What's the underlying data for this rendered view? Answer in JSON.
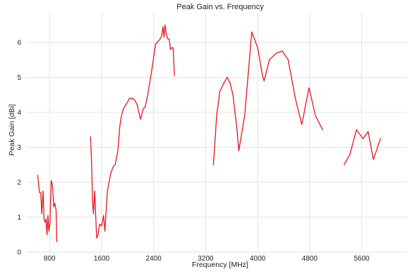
{
  "chart_data": {
    "type": "line",
    "title": "Peak Gain vs. Frequency",
    "xlabel": "Frequency [MHz]",
    "ylabel": "Peak Gain [dBi]",
    "xlim": [
      450,
      6300
    ],
    "ylim": [
      0,
      6.85
    ],
    "xticks": [
      800,
      1600,
      2400,
      3200,
      4000,
      4800,
      5600
    ],
    "yticks": [
      0,
      1,
      2,
      3,
      4,
      5,
      6
    ],
    "grid": true,
    "legend": "none",
    "color": "#e8141c",
    "series": [
      {
        "points": [
          [
            617,
            2.2
          ],
          [
            645,
            1.7
          ],
          [
            665,
            1.7
          ],
          [
            680,
            1.1
          ],
          [
            700,
            1.75
          ],
          [
            715,
            0.95
          ],
          [
            730,
            0.85
          ],
          [
            745,
            0.95
          ],
          [
            760,
            0.5
          ],
          [
            775,
            1.05
          ],
          [
            790,
            0.6
          ],
          [
            805,
            0.8
          ],
          [
            825,
            2.05
          ],
          [
            845,
            1.9
          ],
          [
            865,
            1.3
          ],
          [
            880,
            1.4
          ],
          [
            900,
            1.2
          ],
          [
            912,
            0.3
          ]
        ]
      },
      {
        "points": [
          [
            1430,
            3.3
          ],
          [
            1445,
            2.6
          ],
          [
            1460,
            1.5
          ],
          [
            1475,
            1.1
          ],
          [
            1495,
            1.75
          ],
          [
            1510,
            1.0
          ],
          [
            1525,
            0.4
          ],
          [
            1545,
            0.5
          ],
          [
            1570,
            0.8
          ],
          [
            1600,
            0.75
          ],
          [
            1630,
            1.05
          ],
          [
            1650,
            0.6
          ],
          [
            1690,
            1.75
          ],
          [
            1740,
            2.25
          ],
          [
            1780,
            2.45
          ],
          [
            1810,
            2.5
          ],
          [
            1850,
            2.9
          ],
          [
            1880,
            3.6
          ],
          [
            1905,
            3.9
          ],
          [
            1935,
            4.1
          ],
          [
            1970,
            4.2
          ],
          [
            2000,
            4.3
          ],
          [
            2030,
            4.4
          ],
          [
            2070,
            4.4
          ],
          [
            2110,
            4.35
          ],
          [
            2150,
            4.2
          ],
          [
            2180,
            3.95
          ],
          [
            2200,
            3.8
          ],
          [
            2240,
            4.1
          ],
          [
            2270,
            4.15
          ],
          [
            2310,
            4.5
          ],
          [
            2380,
            5.3
          ],
          [
            2430,
            5.95
          ],
          [
            2480,
            6.05
          ],
          [
            2520,
            6.15
          ],
          [
            2545,
            6.45
          ],
          [
            2560,
            6.15
          ],
          [
            2575,
            6.5
          ],
          [
            2595,
            6.25
          ],
          [
            2615,
            6.1
          ],
          [
            2640,
            6.1
          ],
          [
            2660,
            5.8
          ],
          [
            2680,
            5.85
          ],
          [
            2700,
            5.85
          ],
          [
            2720,
            5.05
          ]
        ]
      },
      {
        "points": [
          [
            3320,
            2.5
          ],
          [
            3370,
            3.9
          ],
          [
            3420,
            4.6
          ],
          [
            3470,
            4.8
          ],
          [
            3530,
            5.0
          ],
          [
            3575,
            4.85
          ],
          [
            3620,
            4.5
          ],
          [
            3680,
            3.55
          ],
          [
            3710,
            2.9
          ],
          [
            3800,
            3.9
          ],
          [
            3910,
            6.3
          ],
          [
            4000,
            5.85
          ],
          [
            4080,
            5.0
          ],
          [
            4100,
            4.9
          ],
          [
            4180,
            5.5
          ],
          [
            4260,
            5.65
          ],
          [
            4300,
            5.7
          ],
          [
            4380,
            5.75
          ],
          [
            4470,
            5.5
          ],
          [
            4580,
            4.4
          ],
          [
            4680,
            3.65
          ],
          [
            4790,
            4.7
          ],
          [
            4890,
            3.9
          ],
          [
            5000,
            3.5
          ]
        ]
      },
      {
        "points": [
          [
            5330,
            2.5
          ],
          [
            5420,
            2.8
          ],
          [
            5520,
            3.5
          ],
          [
            5620,
            3.25
          ],
          [
            5700,
            3.45
          ],
          [
            5780,
            2.65
          ],
          [
            5890,
            3.25
          ]
        ]
      }
    ]
  }
}
